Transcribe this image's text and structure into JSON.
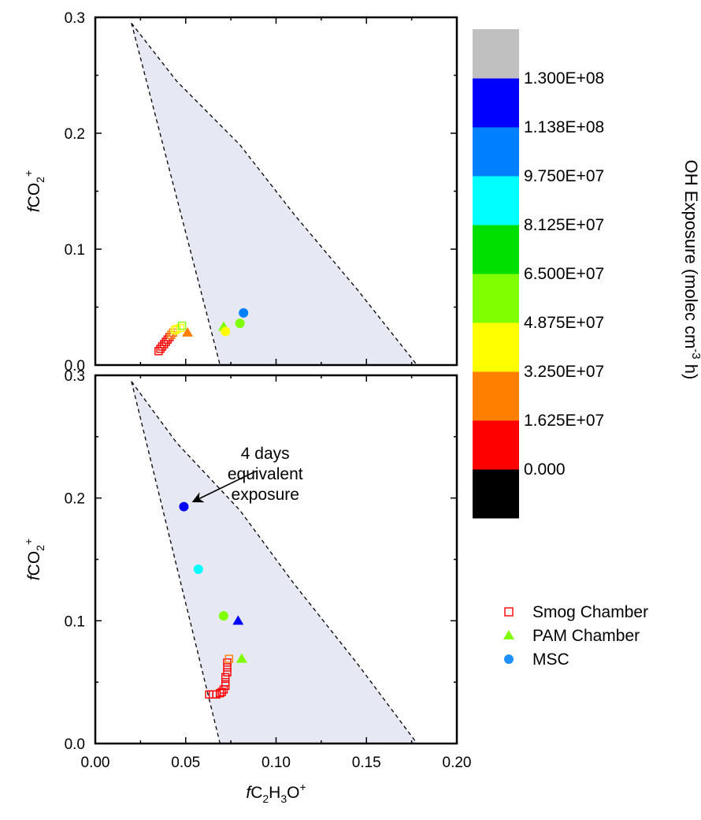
{
  "chart_data": [
    {
      "type": "scatter",
      "panel": "top",
      "xlim": [
        0.0,
        0.2
      ],
      "ylim": [
        0.0,
        0.3
      ],
      "x_ticks": [
        "0.00",
        "0.05",
        "0.10",
        "0.15",
        "0.20"
      ],
      "y_ticks": [
        "0.0",
        "0.1",
        "0.2",
        "0.3"
      ],
      "ylabel": "fCO2+",
      "ylabel_parts": {
        "italic": "f",
        "base": "CO",
        "sub": "2",
        "sup": "+"
      },
      "shaded_region": {
        "left_line": [
          [
            0.02,
            0.295
          ],
          [
            0.069,
            0.0
          ]
        ],
        "right_curve": [
          [
            0.02,
            0.295
          ],
          [
            0.045,
            0.245
          ],
          [
            0.08,
            0.19
          ],
          [
            0.11,
            0.13
          ],
          [
            0.145,
            0.065
          ],
          [
            0.178,
            0.0
          ]
        ],
        "fill": "#e6e8f4"
      },
      "series": [
        {
          "name": "Smog Chamber",
          "marker": "square",
          "points": [
            {
              "x": 0.035,
              "y": 0.012,
              "c": 3000000.0
            },
            {
              "x": 0.036,
              "y": 0.014,
              "c": 5000000.0
            },
            {
              "x": 0.037,
              "y": 0.016,
              "c": 8000000.0
            },
            {
              "x": 0.038,
              "y": 0.018,
              "c": 10000000.0
            },
            {
              "x": 0.039,
              "y": 0.02,
              "c": 12000000.0
            },
            {
              "x": 0.04,
              "y": 0.022,
              "c": 14000000.0
            },
            {
              "x": 0.041,
              "y": 0.024,
              "c": 16000000.0
            },
            {
              "x": 0.042,
              "y": 0.026,
              "c": 22000000.0
            },
            {
              "x": 0.043,
              "y": 0.028,
              "c": 28000000.0
            },
            {
              "x": 0.044,
              "y": 0.03,
              "c": 36000000.0
            },
            {
              "x": 0.045,
              "y": 0.031,
              "c": 42000000.0
            },
            {
              "x": 0.047,
              "y": 0.032,
              "c": 45000000.0
            },
            {
              "x": 0.048,
              "y": 0.034,
              "c": 55000000.0
            }
          ]
        },
        {
          "name": "PAM Chamber",
          "marker": "triangle",
          "points": [
            {
              "x": 0.051,
              "y": 0.028,
              "c": 25000000.0
            },
            {
              "x": 0.071,
              "y": 0.033,
              "c": 62000000.0
            }
          ]
        },
        {
          "name": "MSC",
          "marker": "circle",
          "points": [
            {
              "x": 0.072,
              "y": 0.029,
              "c": 45000000.0
            },
            {
              "x": 0.08,
              "y": 0.036,
              "c": 60000000.0
            },
            {
              "x": 0.082,
              "y": 0.045,
              "c": 105000000.0
            }
          ]
        }
      ]
    },
    {
      "type": "scatter",
      "panel": "bottom",
      "xlim": [
        0.0,
        0.2
      ],
      "ylim": [
        0.0,
        0.3
      ],
      "x_ticks": [
        "0.00",
        "0.05",
        "0.10",
        "0.15",
        "0.20"
      ],
      "y_ticks": [
        "0.0",
        "0.1",
        "0.2",
        "0.3"
      ],
      "xlabel": "fC2H3O+",
      "xlabel_parts": {
        "italic": "f",
        "p1": "C",
        "s1": "2",
        "p2": "H",
        "s2": "3",
        "p3": "O",
        "sup": "+"
      },
      "ylabel": "fCO2+",
      "ylabel_parts": {
        "italic": "f",
        "base": "CO",
        "sub": "2",
        "sup": "+"
      },
      "annotation": {
        "lines": [
          "4 days",
          "equivalent",
          "exposure"
        ],
        "text_at": [
          0.094,
          0.232
        ],
        "arrow_from": [
          0.089,
          0.222
        ],
        "arrow_to": [
          0.054,
          0.197
        ]
      },
      "shaded_region": {
        "left_line": [
          [
            0.02,
            0.295
          ],
          [
            0.069,
            0.0
          ]
        ],
        "right_curve": [
          [
            0.02,
            0.295
          ],
          [
            0.045,
            0.245
          ],
          [
            0.08,
            0.19
          ],
          [
            0.11,
            0.13
          ],
          [
            0.145,
            0.065
          ],
          [
            0.178,
            0.0
          ]
        ],
        "fill": "#e6e8f4"
      },
      "series": [
        {
          "name": "Smog Chamber",
          "marker": "square",
          "points": [
            {
              "x": 0.063,
              "y": 0.04,
              "c": 3000000.0
            },
            {
              "x": 0.065,
              "y": 0.04,
              "c": 6000000.0
            },
            {
              "x": 0.067,
              "y": 0.04,
              "c": 8000000.0
            },
            {
              "x": 0.069,
              "y": 0.041,
              "c": 9000000.0
            },
            {
              "x": 0.07,
              "y": 0.042,
              "c": 10000000.0
            },
            {
              "x": 0.071,
              "y": 0.044,
              "c": 11000000.0
            },
            {
              "x": 0.072,
              "y": 0.047,
              "c": 12000000.0
            },
            {
              "x": 0.072,
              "y": 0.05,
              "c": 13000000.0
            },
            {
              "x": 0.072,
              "y": 0.054,
              "c": 14000000.0
            },
            {
              "x": 0.073,
              "y": 0.058,
              "c": 15000000.0
            },
            {
              "x": 0.073,
              "y": 0.062,
              "c": 15500000.0
            },
            {
              "x": 0.073,
              "y": 0.066,
              "c": 16000000.0
            },
            {
              "x": 0.074,
              "y": 0.069,
              "c": 25000000.0
            }
          ]
        },
        {
          "name": "PAM Chamber",
          "marker": "triangle",
          "points": [
            {
              "x": 0.079,
              "y": 0.1,
              "c": 120000000.0
            },
            {
              "x": 0.081,
              "y": 0.069,
              "c": 60000000.0
            }
          ]
        },
        {
          "name": "MSC",
          "marker": "circle",
          "points": [
            {
              "x": 0.049,
              "y": 0.193,
              "c": 125000000.0
            },
            {
              "x": 0.057,
              "y": 0.142,
              "c": 90000000.0
            },
            {
              "x": 0.071,
              "y": 0.104,
              "c": 60000000.0
            }
          ]
        }
      ]
    }
  ],
  "colorbar": {
    "title": "OH Exposure (molec cm-3 h)",
    "title_parts": {
      "main": "OH Exposure (molec cm",
      "sup": "-3",
      "end": " h)"
    },
    "bands": [
      "#000000",
      "#ff0000",
      "#ff8000",
      "#ffff00",
      "#80ff00",
      "#00e000",
      "#00ffff",
      "#0080ff",
      "#0000ff",
      "#c0c0c0"
    ],
    "levels": [
      0,
      16250000,
      32500000,
      48750000,
      65000000,
      81250000,
      97500000,
      113800000,
      130000000
    ],
    "labels": [
      "0.000",
      "1.625E+07",
      "3.250E+07",
      "4.875E+07",
      "6.500E+07",
      "8.125E+07",
      "9.750E+07",
      "1.138E+08",
      "1.300E+08"
    ]
  },
  "legend": [
    {
      "label": "Smog Chamber",
      "marker": "square",
      "color": "#ff0000"
    },
    {
      "label": "PAM Chamber",
      "marker": "triangle",
      "color": "#80ff00"
    },
    {
      "label": "MSC",
      "marker": "circle",
      "color": "#1e90ff"
    }
  ]
}
